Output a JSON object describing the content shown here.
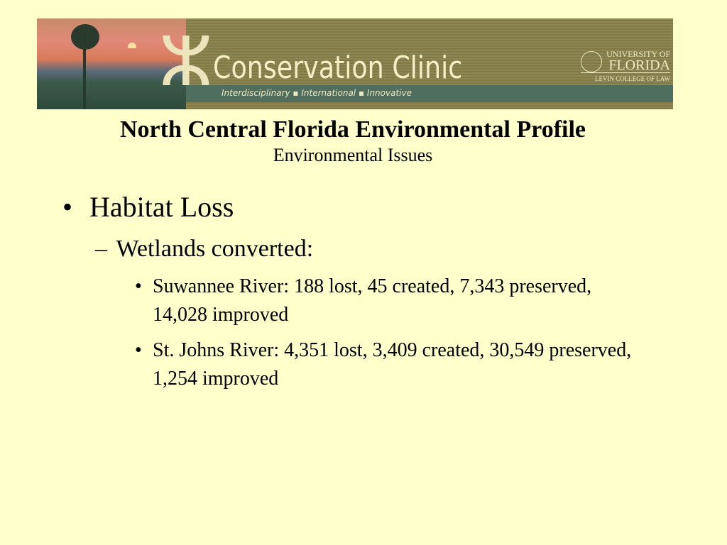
{
  "banner": {
    "title": "Conservation Clinic",
    "tagline": "Interdisciplinary ▪ International ▪ Innovative",
    "university_line1": "UNIVERSITY OF",
    "university_line2": "FLORIDA",
    "college": "LEVIN COLLEGE OF LAW"
  },
  "slide": {
    "title": "North Central Florida Environmental Profile",
    "subtitle": "Environmental Issues",
    "bullets": [
      {
        "marker": "•",
        "text": "Habitat Loss",
        "children": [
          {
            "marker": "–",
            "text": "Wetlands converted:",
            "children": [
              {
                "marker": "•",
                "text": "Suwannee River: 188 lost, 45 created, 7,343 preserved, 14,028 improved"
              },
              {
                "marker": "•",
                "text": "St. Johns River: 4,351 lost, 3,409 created, 30,549 preserved, 1,254 improved"
              }
            ]
          }
        ]
      }
    ]
  },
  "colors": {
    "background": "#ffffcc",
    "banner": "#8e8754",
    "banner_strip": "#4f6e5e"
  }
}
